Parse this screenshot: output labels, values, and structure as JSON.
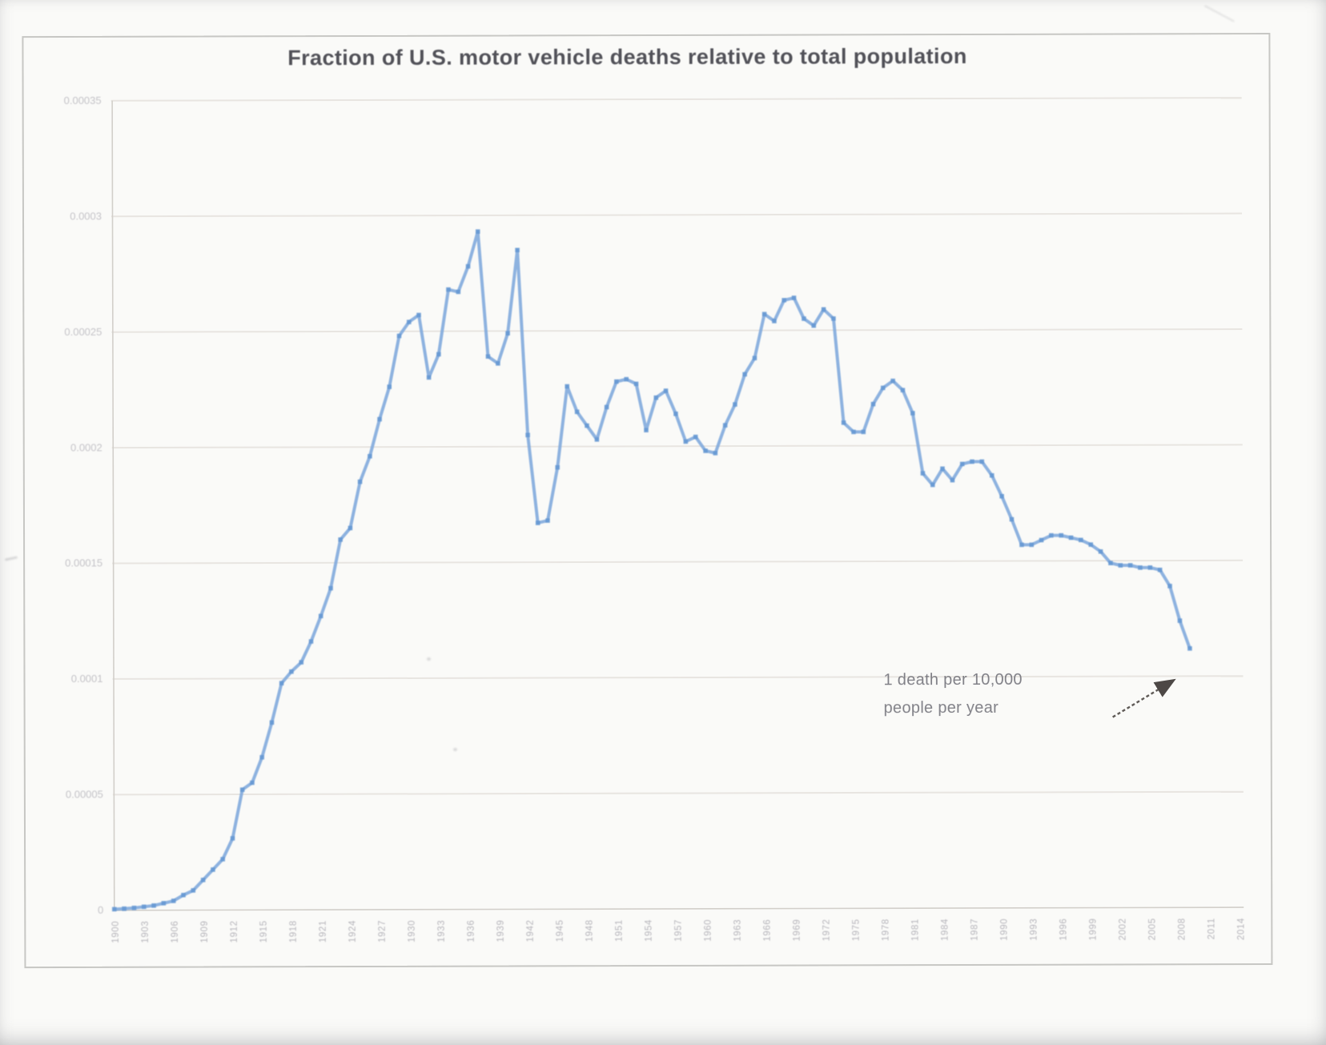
{
  "title": "Fraction of U.S. motor vehicle deaths relative to total population",
  "annotation": {
    "line1": "1 death per 10,000",
    "line2": "people per year",
    "points_to": "0.0001 gridline"
  },
  "colors": {
    "line": "#82abdd",
    "marker": "#6598d2",
    "grid": "#e8e5e1",
    "axis": "#d2cfca",
    "title_text": "#43434b",
    "tick_text": "#84828e",
    "annotation_text": "#5f5f68",
    "arrow": "#2f2a27",
    "paper": "#fafaf8",
    "frame_border": "#c7c7c4"
  },
  "chart_data": {
    "type": "line",
    "title": "Fraction of U.S. motor vehicle deaths relative to total population",
    "xlabel": "",
    "ylabel": "",
    "legend": "none",
    "grid": "horizontal",
    "xlim": [
      1900,
      2014
    ],
    "ylim": [
      0,
      0.00035
    ],
    "y_ticks": [
      {
        "label": "0",
        "value": 0
      },
      {
        "label": "0.00005",
        "value": 5e-05
      },
      {
        "label": "0.0001",
        "value": 0.0001
      },
      {
        "label": "0.00015",
        "value": 0.00015
      },
      {
        "label": "0.0002",
        "value": 0.0002
      },
      {
        "label": "0.00025",
        "value": 0.00025
      },
      {
        "label": "0.0003",
        "value": 0.0003
      },
      {
        "label": "0.00035",
        "value": 0.00035
      }
    ],
    "x_tick_step_years": 3,
    "x_tick_labels": [
      "1900",
      "1903",
      "1906",
      "1909",
      "1912",
      "1915",
      "1918",
      "1921",
      "1924",
      "1927",
      "1930",
      "1933",
      "1936",
      "1939",
      "1942",
      "1945",
      "1948",
      "1951",
      "1954",
      "1957",
      "1960",
      "1963",
      "1966",
      "1969",
      "1972",
      "1975",
      "1978",
      "1981",
      "1984",
      "1987",
      "1990",
      "1993",
      "1996",
      "1999",
      "2002",
      "2005",
      "2008",
      "2011",
      "2014"
    ],
    "series": [
      {
        "name": "Motor vehicle deaths / total population",
        "years": [
          1900,
          1901,
          1902,
          1903,
          1904,
          1905,
          1906,
          1907,
          1908,
          1909,
          1910,
          1911,
          1912,
          1913,
          1914,
          1915,
          1916,
          1917,
          1918,
          1919,
          1920,
          1921,
          1922,
          1923,
          1924,
          1925,
          1926,
          1927,
          1928,
          1929,
          1930,
          1931,
          1932,
          1933,
          1934,
          1935,
          1936,
          1937,
          1938,
          1939,
          1940,
          1941,
          1942,
          1943,
          1944,
          1945,
          1946,
          1947,
          1948,
          1949,
          1950,
          1951,
          1952,
          1953,
          1954,
          1955,
          1956,
          1957,
          1958,
          1959,
          1960,
          1961,
          1962,
          1963,
          1964,
          1965,
          1966,
          1967,
          1968,
          1969,
          1970,
          1971,
          1972,
          1973,
          1974,
          1975,
          1976,
          1977,
          1978,
          1979,
          1980,
          1981,
          1982,
          1983,
          1984,
          1985,
          1986,
          1987,
          1988,
          1989,
          1990,
          1991,
          1992,
          1993,
          1994,
          1995,
          1996,
          1997,
          1998,
          1999,
          2000,
          2001,
          2002,
          2003,
          2004,
          2005,
          2006,
          2007,
          2008,
          2009
        ],
        "values": [
          5e-07,
          7e-07,
          1e-06,
          1.5e-06,
          2e-06,
          3e-06,
          4e-06,
          6.5e-06,
          8.5e-06,
          1.3e-05,
          1.75e-05,
          2.2e-05,
          3.1e-05,
          5.2e-05,
          5.5e-05,
          6.6e-05,
          8.1e-05,
          9.8e-05,
          0.000103,
          0.000107,
          0.000116,
          0.000127,
          0.000139,
          0.00016,
          0.000165,
          0.000185,
          0.000196,
          0.000212,
          0.000226,
          0.000248,
          0.000254,
          0.000257,
          0.00023,
          0.00024,
          0.000268,
          0.000267,
          0.000278,
          0.000293,
          0.000239,
          0.000236,
          0.000249,
          0.000285,
          0.000205,
          0.000167,
          0.000168,
          0.000191,
          0.000226,
          0.000215,
          0.000209,
          0.000203,
          0.000217,
          0.000228,
          0.000229,
          0.000227,
          0.000207,
          0.000221,
          0.000224,
          0.000214,
          0.000202,
          0.000204,
          0.000198,
          0.000197,
          0.000209,
          0.000218,
          0.000231,
          0.000238,
          0.000257,
          0.000254,
          0.000263,
          0.000264,
          0.000255,
          0.000252,
          0.000259,
          0.000255,
          0.00021,
          0.000206,
          0.000206,
          0.000218,
          0.000225,
          0.000228,
          0.000224,
          0.000214,
          0.000188,
          0.000183,
          0.00019,
          0.000185,
          0.000192,
          0.000193,
          0.000193,
          0.000187,
          0.000178,
          0.000168,
          0.000157,
          0.000157,
          0.000159,
          0.000161,
          0.000161,
          0.00016,
          0.000159,
          0.000157,
          0.000154,
          0.000149,
          0.000148,
          0.000148,
          0.000147,
          0.000147,
          0.000146,
          0.000139,
          0.000124,
          0.000112
        ]
      }
    ],
    "annotations": [
      {
        "text": "1 death per 10,000 people per year",
        "arrow_points_to_value": 0.0001
      }
    ]
  }
}
